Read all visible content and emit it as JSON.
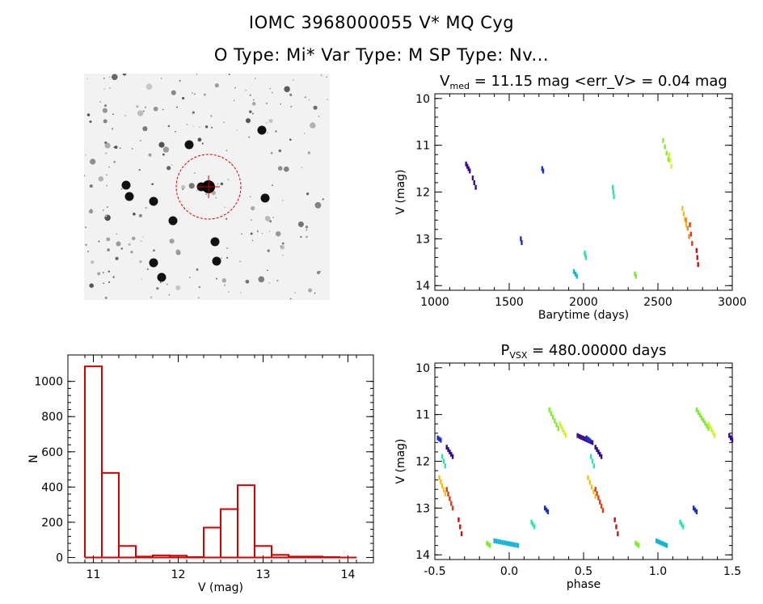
{
  "header": {
    "title_line1": "IOMC 3968000055    V* MQ Cyg",
    "title_line2": "O Type: Mi*  Var Type: M   SP Type: Nv..."
  },
  "colors": {
    "histogram": "#d40000",
    "finder_circle": "#d40000",
    "phase_palette": [
      "#3a0a8c",
      "#1b2fd1",
      "#14b4d8",
      "#2fe0b0",
      "#7cf02e",
      "#d6f02c",
      "#f0c020",
      "#f08a12",
      "#e83a10",
      "#c81010"
    ]
  },
  "chart_data": [
    {
      "type": "image",
      "panel": "finder-chart",
      "description_marks": [
        "crosshair",
        "dashed-circle"
      ]
    },
    {
      "type": "scatter",
      "panel": "light-curve",
      "title_main": "V",
      "title_sub": "med",
      "title_rest": " = 11.15 mag <err_V> = 0.04 mag",
      "xlabel": "Barytime (days)",
      "ylabel": "V (mag)",
      "xlim": [
        1000,
        3000
      ],
      "ylim": [
        14.1,
        9.9
      ],
      "xticks": [
        1000,
        1500,
        2000,
        2500,
        3000
      ],
      "yticks": [
        10,
        11,
        12,
        13,
        14
      ],
      "clusters": [
        {
          "x": [
            1210,
            1235
          ],
          "y": [
            11.4,
            11.55
          ],
          "color": "#3a0a8c"
        },
        {
          "x": [
            1255,
            1275
          ],
          "y": [
            11.7,
            11.9
          ],
          "color": "#3a0a8c"
        },
        {
          "x": [
            1578,
            1584
          ],
          "y": [
            13.0,
            13.08
          ],
          "color": "#1b2fd1"
        },
        {
          "x": [
            1722,
            1728
          ],
          "y": [
            11.5,
            11.55
          ],
          "color": "#1b2fd1"
        },
        {
          "x": [
            1935,
            1955
          ],
          "y": [
            13.7,
            13.8
          ],
          "color": "#14b4d8"
        },
        {
          "x": [
            2008,
            2016
          ],
          "y": [
            13.3,
            13.4
          ],
          "color": "#2fe0b0"
        },
        {
          "x": [
            2196,
            2204
          ],
          "y": [
            11.9,
            12.1
          ],
          "color": "#2fe0b0"
        },
        {
          "x": [
            2345,
            2352
          ],
          "y": [
            13.75,
            13.8
          ],
          "color": "#7cf02e"
        },
        {
          "x": [
            2535,
            2570
          ],
          "y": [
            10.9,
            11.3
          ],
          "color": "#7cf02e"
        },
        {
          "x": [
            2575,
            2590
          ],
          "y": [
            11.2,
            11.45
          ],
          "color": "#d6f02c"
        },
        {
          "x": [
            2665,
            2690
          ],
          "y": [
            12.35,
            12.7
          ],
          "color": "#f0c020"
        },
        {
          "x": [
            2690,
            2710
          ],
          "y": [
            12.6,
            12.95
          ],
          "color": "#f08a12"
        },
        {
          "x": [
            2715,
            2730
          ],
          "y": [
            12.7,
            13.1
          ],
          "color": "#e83a10"
        },
        {
          "x": [
            2760,
            2770
          ],
          "y": [
            13.25,
            13.55
          ],
          "color": "#c81010"
        }
      ]
    },
    {
      "type": "bar",
      "panel": "histogram",
      "xlabel": "V (mag)",
      "ylabel": "N",
      "xlim": [
        10.7,
        14.3
      ],
      "ylim": [
        -30,
        1150
      ],
      "xticks": [
        11,
        12,
        13,
        14
      ],
      "yticks": [
        0,
        200,
        400,
        600,
        800,
        1000
      ],
      "bin_edges": [
        10.9,
        11.1,
        11.3,
        11.5,
        11.7,
        11.9,
        12.1,
        12.3,
        12.5,
        12.7,
        12.9,
        13.1,
        13.3,
        13.5,
        13.7,
        13.9,
        14.1
      ],
      "values": [
        1085,
        480,
        65,
        5,
        12,
        10,
        2,
        170,
        275,
        410,
        65,
        15,
        5,
        5,
        2,
        0
      ]
    },
    {
      "type": "scatter",
      "panel": "phase-curve",
      "title_main": "P",
      "title_sub": "VSX",
      "title_rest": " = 480.00000 days",
      "xlabel": "phase",
      "ylabel": "V (mag)",
      "xlim": [
        -0.5,
        1.5
      ],
      "ylim": [
        14.1,
        9.9
      ],
      "xticks": [
        -0.5,
        0.0,
        0.5,
        1.0,
        1.5
      ],
      "yticks": [
        10,
        11,
        12,
        13,
        14
      ],
      "clusters": [
        {
          "x": [
            -0.48,
            -0.46
          ],
          "y": [
            11.5,
            11.55
          ],
          "color": "#1b2fd1"
        },
        {
          "x": [
            -0.45,
            -0.43
          ],
          "y": [
            11.9,
            12.1
          ],
          "color": "#2fe0b0"
        },
        {
          "x": [
            -0.42,
            -0.38
          ],
          "y": [
            11.7,
            11.9
          ],
          "color": "#3a0a8c"
        },
        {
          "x": [
            -0.47,
            -0.43
          ],
          "y": [
            12.35,
            12.7
          ],
          "color": "#f0c020"
        },
        {
          "x": [
            -0.42,
            -0.38
          ],
          "y": [
            12.6,
            13.0
          ],
          "color": "#e83a10"
        },
        {
          "x": [
            -0.34,
            -0.32
          ],
          "y": [
            13.25,
            13.55
          ],
          "color": "#c81010"
        },
        {
          "x": [
            -0.15,
            -0.13
          ],
          "y": [
            13.75,
            13.8
          ],
          "color": "#7cf02e"
        },
        {
          "x": [
            -0.1,
            0.06
          ],
          "y": [
            13.7,
            13.8
          ],
          "color": "#14b4d8"
        },
        {
          "x": [
            0.15,
            0.17
          ],
          "y": [
            13.3,
            13.4
          ],
          "color": "#2fe0b0"
        },
        {
          "x": [
            0.24,
            0.26
          ],
          "y": [
            13.0,
            13.08
          ],
          "color": "#1b2fd1"
        },
        {
          "x": [
            0.27,
            0.33
          ],
          "y": [
            10.9,
            11.3
          ],
          "color": "#7cf02e"
        },
        {
          "x": [
            0.34,
            0.38
          ],
          "y": [
            11.2,
            11.45
          ],
          "color": "#d6f02c"
        },
        {
          "x": [
            0.46,
            0.56
          ],
          "y": [
            11.45,
            11.6
          ],
          "color": "#3a0a8c"
        },
        {
          "x": [
            0.52,
            0.54
          ],
          "y": [
            11.5,
            11.55
          ],
          "color": "#1b2fd1"
        },
        {
          "x": [
            0.55,
            0.57
          ],
          "y": [
            11.9,
            12.1
          ],
          "color": "#2fe0b0"
        },
        {
          "x": [
            0.58,
            0.62
          ],
          "y": [
            11.7,
            11.9
          ],
          "color": "#3a0a8c"
        },
        {
          "x": [
            0.53,
            0.58
          ],
          "y": [
            12.35,
            12.75
          ],
          "color": "#f0c020"
        },
        {
          "x": [
            0.58,
            0.63
          ],
          "y": [
            12.6,
            13.05
          ],
          "color": "#e83a10"
        },
        {
          "x": [
            0.71,
            0.73
          ],
          "y": [
            13.25,
            13.55
          ],
          "color": "#c81010"
        },
        {
          "x": [
            0.85,
            0.87
          ],
          "y": [
            13.75,
            13.8
          ],
          "color": "#7cf02e"
        },
        {
          "x": [
            0.99,
            1.06
          ],
          "y": [
            13.7,
            13.8
          ],
          "color": "#14b4d8"
        },
        {
          "x": [
            1.15,
            1.17
          ],
          "y": [
            13.3,
            13.4
          ],
          "color": "#2fe0b0"
        },
        {
          "x": [
            1.24,
            1.26
          ],
          "y": [
            13.0,
            13.08
          ],
          "color": "#1b2fd1"
        },
        {
          "x": [
            1.26,
            1.34
          ],
          "y": [
            10.9,
            11.3
          ],
          "color": "#7cf02e"
        },
        {
          "x": [
            1.34,
            1.38
          ],
          "y": [
            11.2,
            11.45
          ],
          "color": "#d6f02c"
        },
        {
          "x": [
            1.48,
            1.5
          ],
          "y": [
            11.45,
            11.55
          ],
          "color": "#3a0a8c"
        }
      ]
    }
  ]
}
